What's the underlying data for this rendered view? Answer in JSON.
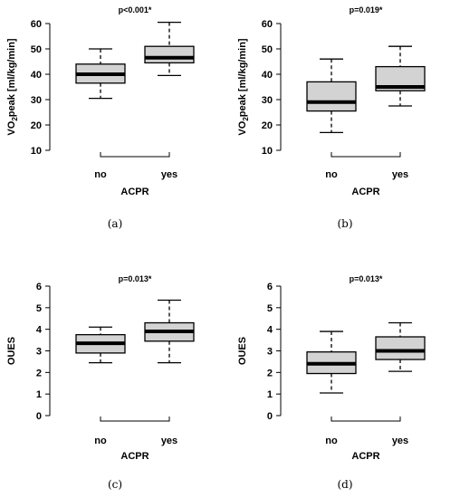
{
  "captions": [
    "(a)",
    "(b)",
    "(c)",
    "(d)"
  ],
  "chart_data": [
    {
      "type": "box",
      "title": "p<0.001*",
      "xlabel": "ACPR",
      "ylabel": "VO2peak [ml/kg/min]",
      "ylabel_main": "VO",
      "ylabel_sub": "2",
      "ylabel_rest": "peak [ml/kg/min]",
      "ylim": [
        10,
        60
      ],
      "yticks": [
        10,
        20,
        30,
        40,
        50,
        60
      ],
      "categories": [
        "no",
        "yes"
      ],
      "boxes": [
        {
          "min": 30.5,
          "q1": 36.5,
          "median": 40,
          "q3": 44,
          "max": 50
        },
        {
          "min": 39.5,
          "q1": 44.5,
          "median": 46.5,
          "q3": 51,
          "max": 60.5
        }
      ]
    },
    {
      "type": "box",
      "title": "p=0.019*",
      "xlabel": "ACPR",
      "ylabel": "VO2peak [ml/kg/min]",
      "ylabel_main": "VO",
      "ylabel_sub": "2",
      "ylabel_rest": "peak [ml/kg/min]",
      "ylim": [
        10,
        60
      ],
      "yticks": [
        10,
        20,
        30,
        40,
        50,
        60
      ],
      "categories": [
        "no",
        "yes"
      ],
      "boxes": [
        {
          "min": 17,
          "q1": 25.5,
          "median": 29,
          "q3": 37,
          "max": 46
        },
        {
          "min": 27.5,
          "q1": 33.5,
          "median": 35,
          "q3": 43,
          "max": 51
        }
      ]
    },
    {
      "type": "box",
      "title": "p=0.013*",
      "xlabel": "ACPR",
      "ylabel": "OUES",
      "ylabel_main": "OUES",
      "ylabel_sub": "",
      "ylabel_rest": "",
      "ylim": [
        0,
        6
      ],
      "yticks": [
        0,
        1,
        2,
        3,
        4,
        5,
        6
      ],
      "categories": [
        "no",
        "yes"
      ],
      "boxes": [
        {
          "min": 2.45,
          "q1": 2.9,
          "median": 3.35,
          "q3": 3.75,
          "max": 4.1
        },
        {
          "min": 2.45,
          "q1": 3.45,
          "median": 3.9,
          "q3": 4.3,
          "max": 5.35
        }
      ]
    },
    {
      "type": "box",
      "title": "p=0.013*",
      "xlabel": "ACPR",
      "ylabel": "OUES",
      "ylabel_main": "OUES",
      "ylabel_sub": "",
      "ylabel_rest": "",
      "ylim": [
        0,
        6
      ],
      "yticks": [
        0,
        1,
        2,
        3,
        4,
        5,
        6
      ],
      "categories": [
        "no",
        "yes"
      ],
      "boxes": [
        {
          "min": 1.05,
          "q1": 1.95,
          "median": 2.4,
          "q3": 2.95,
          "max": 3.9
        },
        {
          "min": 2.05,
          "q1": 2.6,
          "median": 3.0,
          "q3": 3.65,
          "max": 4.3
        }
      ]
    }
  ]
}
